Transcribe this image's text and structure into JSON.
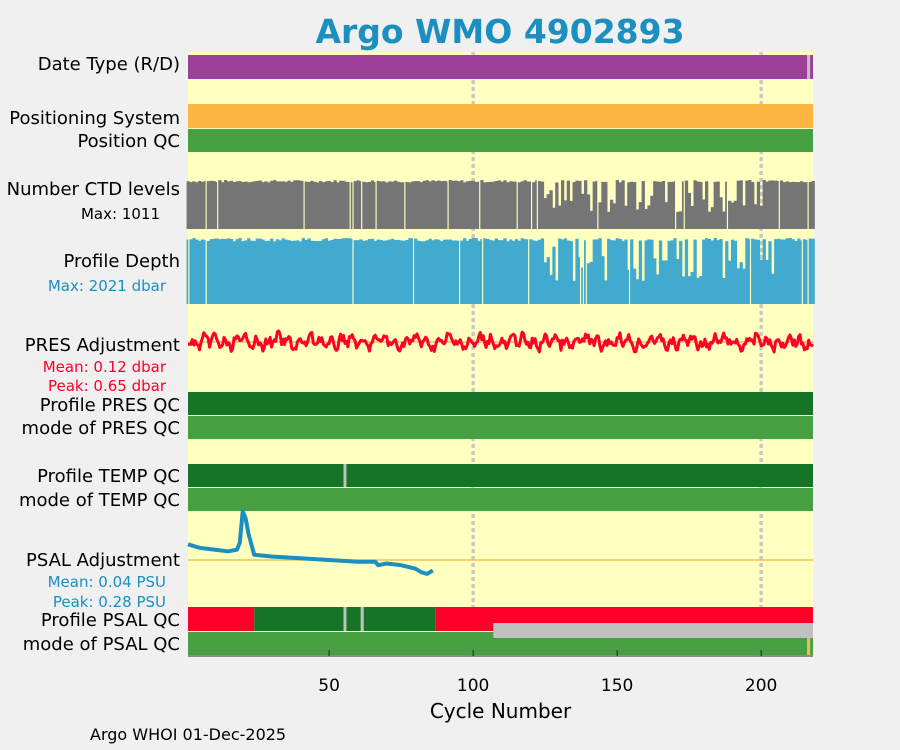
{
  "title": "Argo WMO 4902893",
  "footer": "Argo WHOI 01-Dec-2025",
  "colors": {
    "background": "#ffffbf",
    "purple": "#9b3f98",
    "orange": "#fdb642",
    "qc_green": "#479f44",
    "dark_green": "#167427",
    "gray_bar": "#757575",
    "blue_bar": "#43aacf",
    "red": "#ff0028",
    "psal_blue": "#1a8fc0",
    "guide": "#efc34f",
    "grid": "#c9c9c9",
    "missing": "#c0c0c0"
  },
  "chart_data": {
    "type": "multi-panel strip plot",
    "xlabel": "Cycle Number",
    "xlim": [
      1,
      218
    ],
    "xticks": [
      50,
      100,
      150,
      200
    ],
    "grid_x": [
      100,
      200
    ],
    "rows": [
      {
        "id": "date_type",
        "label": "Date Type (R/D)",
        "segments": [
          {
            "from": 1,
            "to": 216,
            "color": "purple"
          },
          {
            "from": 216,
            "to": 217,
            "color": "missing"
          },
          {
            "from": 217,
            "to": 218,
            "color": "purple"
          }
        ]
      },
      {
        "id": "positioning_system",
        "label": "Positioning System",
        "segments": [
          {
            "from": 1,
            "to": 218,
            "color": "orange"
          }
        ]
      },
      {
        "id": "position_qc",
        "label": "Position QC",
        "segments": [
          {
            "from": 1,
            "to": 218,
            "color": "qc_green"
          }
        ]
      },
      {
        "id": "ctd_levels",
        "label": "Number CTD levels",
        "sublabel": "Max: 1011",
        "max": 1011
      },
      {
        "id": "profile_depth",
        "label": "Profile Depth",
        "sublabel": "Max: 2021 dbar",
        "max": 2021
      },
      {
        "id": "pres_adjustment",
        "label": "PRES Adjustment",
        "stats": [
          "Mean: 0.12 dbar",
          "Peak: 0.65 dbar"
        ]
      },
      {
        "id": "profile_pres_qc",
        "label": "Profile PRES QC",
        "segments": [
          {
            "from": 1,
            "to": 218,
            "color": "dark_green"
          }
        ]
      },
      {
        "id": "mode_pres_qc",
        "label": "mode of PRES QC",
        "segments": [
          {
            "from": 1,
            "to": 218,
            "color": "qc_green"
          }
        ]
      },
      {
        "id": "profile_temp_qc",
        "label": "Profile TEMP QC",
        "segments": [
          {
            "from": 1,
            "to": 55,
            "color": "dark_green"
          },
          {
            "from": 55,
            "to": 56,
            "color": "missing"
          },
          {
            "from": 56,
            "to": 218,
            "color": "dark_green"
          }
        ]
      },
      {
        "id": "mode_temp_qc",
        "label": "mode of TEMP QC",
        "segments": [
          {
            "from": 1,
            "to": 218,
            "color": "qc_green"
          }
        ]
      },
      {
        "id": "psal_adjustment",
        "label": "PSAL Adjustment",
        "stats": [
          "Mean: 0.04 PSU",
          "Peak: 0.28 PSU"
        ]
      },
      {
        "id": "profile_psal_qc",
        "label": "Profile PSAL QC",
        "segments": [
          {
            "from": 1,
            "to": 24,
            "color": "red"
          },
          {
            "from": 24,
            "to": 55,
            "color": "dark_green"
          },
          {
            "from": 55,
            "to": 56,
            "color": "missing"
          },
          {
            "from": 56,
            "to": 61,
            "color": "dark_green"
          },
          {
            "from": 61,
            "to": 62,
            "color": "missing"
          },
          {
            "from": 62,
            "to": 87,
            "color": "dark_green"
          },
          {
            "from": 87,
            "to": 218,
            "color": "red"
          }
        ]
      },
      {
        "id": "mode_psal_qc",
        "label": "mode of PSAL QC",
        "segments": [
          {
            "from": 1,
            "to": 216,
            "color": "qc_green"
          },
          {
            "from": 216,
            "to": 217,
            "color": "orange"
          },
          {
            "from": 217,
            "to": 218,
            "color": "qc_green"
          }
        ]
      }
    ],
    "psal_qc_missing_band": {
      "from": 107,
      "to": 218
    },
    "psal_adjustment_series": [
      [
        1,
        0.09
      ],
      [
        5,
        0.07
      ],
      [
        10,
        0.06
      ],
      [
        15,
        0.05
      ],
      [
        18,
        0.06
      ],
      [
        19,
        0.1
      ],
      [
        20,
        0.28
      ],
      [
        21,
        0.24
      ],
      [
        22,
        0.15
      ],
      [
        24,
        0.03
      ],
      [
        30,
        0.02
      ],
      [
        40,
        0.01
      ],
      [
        50,
        0.0
      ],
      [
        60,
        -0.01
      ],
      [
        66,
        -0.01
      ],
      [
        67,
        -0.03
      ],
      [
        70,
        -0.02
      ],
      [
        75,
        -0.03
      ],
      [
        80,
        -0.05
      ],
      [
        82,
        -0.07
      ],
      [
        84,
        -0.08
      ],
      [
        86,
        -0.06
      ]
    ]
  }
}
